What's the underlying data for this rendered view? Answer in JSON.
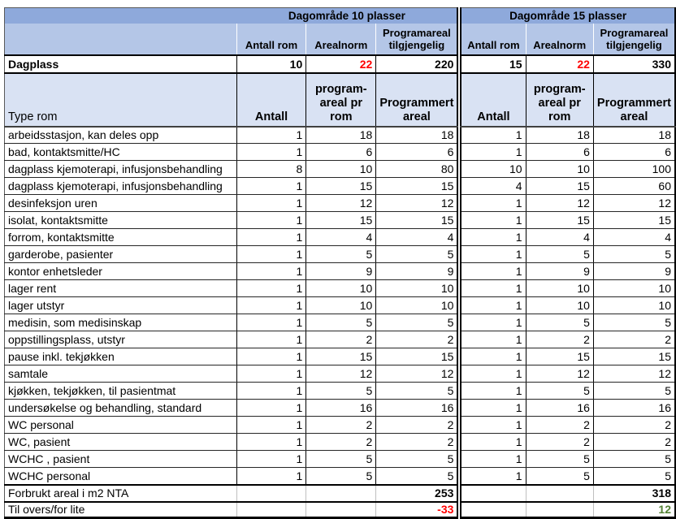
{
  "colors": {
    "band1_blue": "#8EA9DB",
    "band2_blue": "#B4C6E7",
    "header_lavender": "#D9E2F3",
    "alert_red": "#FF0000",
    "ok_green": "#548235"
  },
  "sections": [
    {
      "title": "Dagområde 10 plasser"
    },
    {
      "title": "Dagområde 15 plasser"
    }
  ],
  "subheaders": {
    "antall_rom": "Antall rom",
    "arealnorm": "Arealnorm",
    "programareal": "Programareal tilgjengelig"
  },
  "dagplass": {
    "label": "Dagplass",
    "s1": {
      "antall": "10",
      "norm": "22",
      "areal": "220"
    },
    "s2": {
      "antall": "15",
      "norm": "22",
      "areal": "330"
    }
  },
  "room_header": {
    "type_rom": "Type rom",
    "antall": "Antall",
    "pr_rom": "program-areal pr rom",
    "programmert": "Programmert areal"
  },
  "rooms": [
    {
      "name": "arbeidsstasjon, kan deles opp",
      "cells": [
        "1",
        "18",
        "18",
        "1",
        "18",
        "18"
      ]
    },
    {
      "name": "bad, kontaktsmitte/HC",
      "cells": [
        "1",
        "6",
        "6",
        "1",
        "6",
        "6"
      ]
    },
    {
      "name": "dagplass kjemoterapi, infusjonsbehandling",
      "cells": [
        "8",
        "10",
        "80",
        "10",
        "10",
        "100"
      ]
    },
    {
      "name": "dagplass kjemoterapi, infusjonsbehandling",
      "cells": [
        "1",
        "15",
        "15",
        "4",
        "15",
        "60"
      ]
    },
    {
      "name": "desinfeksjon uren",
      "cells": [
        "1",
        "12",
        "12",
        "1",
        "12",
        "12"
      ]
    },
    {
      "name": "isolat, kontaktsmitte",
      "cells": [
        "1",
        "15",
        "15",
        "1",
        "15",
        "15"
      ]
    },
    {
      "name": "forrom, kontaktsmitte",
      "cells": [
        "1",
        "4",
        "4",
        "1",
        "4",
        "4"
      ]
    },
    {
      "name": "garderobe, pasienter",
      "cells": [
        "1",
        "5",
        "5",
        "1",
        "5",
        "5"
      ]
    },
    {
      "name": "kontor enhetsleder",
      "cells": [
        "1",
        "9",
        "9",
        "1",
        "9",
        "9"
      ]
    },
    {
      "name": "lager rent",
      "cells": [
        "1",
        "10",
        "10",
        "1",
        "10",
        "10"
      ]
    },
    {
      "name": "lager utstyr",
      "cells": [
        "1",
        "10",
        "10",
        "1",
        "10",
        "10"
      ]
    },
    {
      "name": "medisin, som medisinskap",
      "cells": [
        "1",
        "5",
        "5",
        "1",
        "5",
        "5"
      ]
    },
    {
      "name": "oppstillingsplass, utstyr",
      "cells": [
        "1",
        "2",
        "2",
        "1",
        "2",
        "2"
      ]
    },
    {
      "name": "pause inkl. tekjøkken",
      "cells": [
        "1",
        "15",
        "15",
        "1",
        "15",
        "15"
      ]
    },
    {
      "name": "samtale",
      "cells": [
        "1",
        "12",
        "12",
        "1",
        "12",
        "12"
      ]
    },
    {
      "name": "kjøkken, tekjøkken, til pasientmat",
      "cells": [
        "1",
        "5",
        "5",
        "1",
        "5",
        "5"
      ]
    },
    {
      "name": "undersøkelse og behandling, standard",
      "cells": [
        "1",
        "16",
        "16",
        "1",
        "16",
        "16"
      ]
    },
    {
      "name": "WC personal",
      "cells": [
        "1",
        "2",
        "2",
        "1",
        "2",
        "2"
      ]
    },
    {
      "name": "WC, pasient",
      "cells": [
        "1",
        "2",
        "2",
        "1",
        "2",
        "2"
      ]
    },
    {
      "name": "WCHC , pasient",
      "cells": [
        "1",
        "5",
        "5",
        "1",
        "5",
        "5"
      ]
    },
    {
      "name": "WCHC personal",
      "cells": [
        "1",
        "5",
        "5",
        "1",
        "5",
        "5"
      ]
    }
  ],
  "footer": {
    "forbrukt": {
      "label": "Forbrukt areal i m2 NTA",
      "s1": "253",
      "s2": "318"
    },
    "overs": {
      "label": "Til overs/for lite",
      "s1": "-33",
      "s2": "12"
    }
  }
}
